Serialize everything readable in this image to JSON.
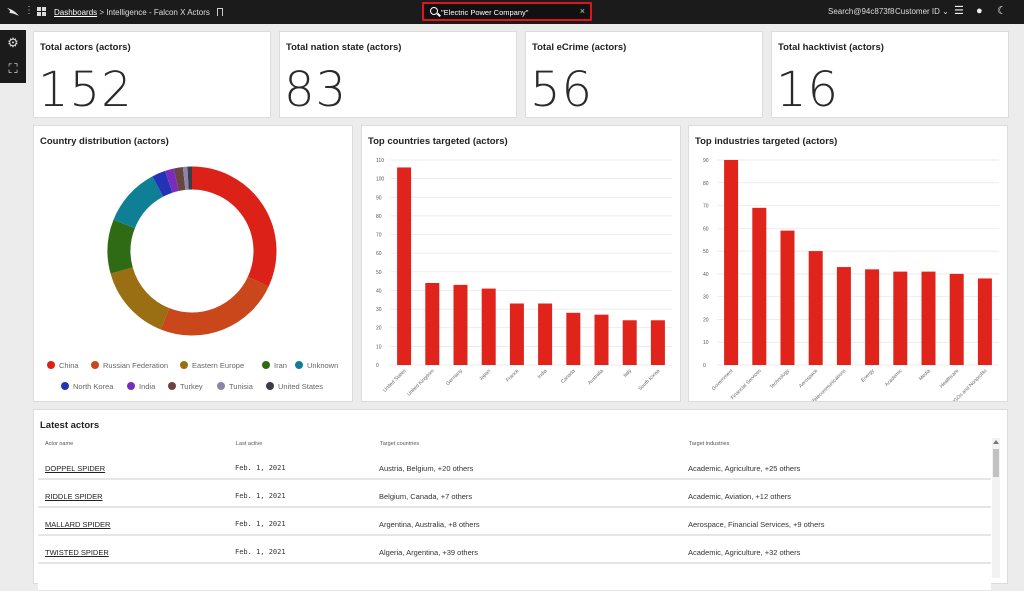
{
  "topbar": {
    "breadcrumb_link": "Dashboards",
    "breadcrumb_rest": "> Intelligence - Falcon X Actors",
    "search_value": "\"Electric Power Company\"",
    "search_id": "Search@94c873f8",
    "customer_id": "Customer ID"
  },
  "kpis": [
    {
      "title": "Total actors (actors)",
      "value": "152"
    },
    {
      "title": "Total nation state (actors)",
      "value": "83"
    },
    {
      "title": "Total eCrime (actors)",
      "value": "56"
    },
    {
      "title": "Total hacktivist (actors)",
      "value": "16"
    }
  ],
  "donut": {
    "title": "Country distribution (actors)",
    "legend": [
      {
        "name": "China",
        "color": "#dc2118"
      },
      {
        "name": "Russian Federation",
        "color": "#c9471a"
      },
      {
        "name": "Eastern Europe",
        "color": "#9a6e12"
      },
      {
        "name": "Iran",
        "color": "#2f6b14"
      },
      {
        "name": "Unknown",
        "color": "#0f7f96"
      },
      {
        "name": "North Korea",
        "color": "#2233b5"
      },
      {
        "name": "India",
        "color": "#7a2dbd"
      },
      {
        "name": "Turkey",
        "color": "#6a4540"
      },
      {
        "name": "Tunisia",
        "color": "#8a86a6"
      },
      {
        "name": "United States",
        "color": "#3e3a47"
      }
    ],
    "values": [
      37,
      28,
      17,
      12,
      13,
      3,
      2,
      2,
      1,
      1
    ]
  },
  "chart_data": [
    {
      "type": "bar",
      "title": "Top countries targeted (actors)",
      "categories": [
        "United States",
        "United Kingdom",
        "Germany",
        "Japan",
        "France",
        "India",
        "Canada",
        "Australia",
        "Italy",
        "South Korea"
      ],
      "values": [
        106,
        44,
        43,
        41,
        33,
        33,
        28,
        27,
        24,
        24
      ],
      "ylim": [
        0,
        110
      ],
      "yticks": [
        "0",
        "10",
        "20",
        "30",
        "40",
        "50",
        "60",
        "70",
        "80",
        "90",
        "100",
        "110"
      ],
      "color": "#e0231b"
    },
    {
      "type": "bar",
      "title": "Top industries targeted (actors)",
      "categories": [
        "Government",
        "Financial Services",
        "Technology",
        "Aerospace",
        "Telecommunications",
        "Energy",
        "Academic",
        "Media",
        "Healthcare",
        "NGOs and Nonprofits"
      ],
      "values": [
        90,
        69,
        59,
        50,
        43,
        42,
        41,
        41,
        40,
        38
      ],
      "ylim": [
        0,
        90
      ],
      "yticks": [
        "0",
        "10",
        "20",
        "30",
        "40",
        "50",
        "60",
        "70",
        "80",
        "90"
      ],
      "color": "#e0231b"
    }
  ],
  "table": {
    "title": "Latest actors",
    "headers": [
      "Actor name",
      "Last active",
      "Target countries",
      "Target industries"
    ],
    "rows": [
      [
        "DOPPEL SPIDER",
        "Feb. 1, 2021",
        "Austria, Belgium, +20 others",
        "Academic, Agriculture, +25 others"
      ],
      [
        "RIDDLE SPIDER",
        "Feb. 1, 2021",
        "Belgium, Canada, +7 others",
        "Academic, Aviation, +12 others"
      ],
      [
        "MALLARD SPIDER",
        "Feb. 1, 2021",
        "Argentina, Australia, +8 others",
        "Aerospace, Financial Services, +9 others"
      ],
      [
        "TWISTED SPIDER",
        "Feb. 1, 2021",
        "Algeria, Argentina, +39 others",
        "Academic, Agriculture, +32 others"
      ]
    ]
  }
}
